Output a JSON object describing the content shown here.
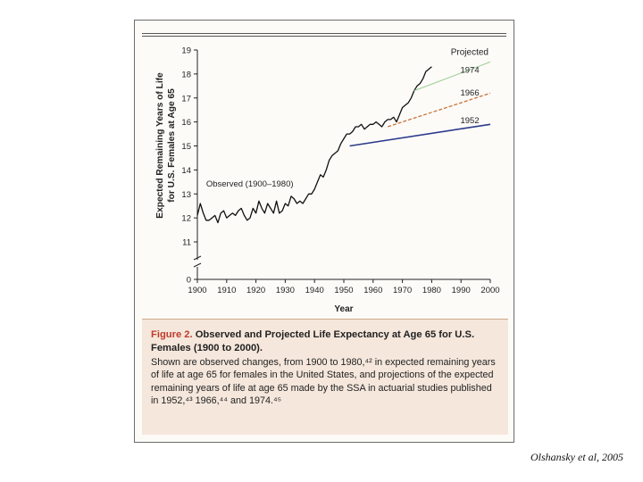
{
  "caption": {
    "label": "Figure 2.",
    "title": "Observed and Projected Life Expectancy at Age 65 for U.S. Females (1900 to 2000).",
    "body": "Shown are observed changes, from 1900 to 1980,⁴² in expected remaining years of life at age 65 for females in the United States, and projections of the expected remaining years of life at age 65 made by the SSA in actuarial studies published in 1952,⁴³ 1966,⁴⁴ and 1974.⁴⁵"
  },
  "credit": "Olshansky et al, 2005",
  "colors": {
    "observed": "#111111",
    "proj1974": "#9fcf9a",
    "proj1966": "#c8743a",
    "proj1952": "#2b3a8c",
    "caption_bg": "#f5e7dc"
  },
  "chart_data": {
    "type": "line",
    "title": "",
    "xlabel": "Year",
    "ylabel": "Expected Remaining Years of Life for U.S. Females at Age 65",
    "xlim": [
      1900,
      2000
    ],
    "ylim": [
      11,
      19
    ],
    "y_axis_break": "between 0 and 11",
    "x_ticks": [
      1900,
      1910,
      1920,
      1930,
      1940,
      1950,
      1960,
      1970,
      1980,
      1990,
      2000
    ],
    "x_tick_labels": [
      "1900",
      "1910",
      "1920",
      "1930",
      "1940",
      "1950",
      "1960",
      "1970",
      "1980",
      "1990",
      "2000"
    ],
    "y_ticks": [
      11,
      12,
      13,
      14,
      15,
      16,
      17,
      18,
      19
    ],
    "y_tick_labels": [
      "11",
      "12",
      "13",
      "14",
      "15",
      "16",
      "17",
      "18",
      "19"
    ],
    "y_zero_label": "0",
    "legend_header": "Projected",
    "grid": false,
    "series": [
      {
        "name": "Observed (1900–1980)",
        "x": [
          1900,
          1901,
          1902,
          1903,
          1904,
          1905,
          1906,
          1907,
          1908,
          1909,
          1910,
          1911,
          1912,
          1913,
          1914,
          1915,
          1916,
          1917,
          1918,
          1919,
          1920,
          1921,
          1922,
          1923,
          1924,
          1925,
          1926,
          1927,
          1928,
          1929,
          1930,
          1931,
          1932,
          1933,
          1934,
          1935,
          1936,
          1937,
          1938,
          1939,
          1940,
          1941,
          1942,
          1943,
          1944,
          1945,
          1946,
          1947,
          1948,
          1949,
          1950,
          1951,
          1952,
          1953,
          1954,
          1955,
          1956,
          1957,
          1958,
          1959,
          1960,
          1961,
          1962,
          1963,
          1964,
          1965,
          1966,
          1967,
          1968,
          1969,
          1970,
          1971,
          1972,
          1973,
          1974,
          1975,
          1976,
          1977,
          1978,
          1979,
          1980
        ],
        "y": [
          12.1,
          12.6,
          12.2,
          11.9,
          11.9,
          12.0,
          12.1,
          11.8,
          12.2,
          12.3,
          12.0,
          12.1,
          12.2,
          12.1,
          12.3,
          12.4,
          12.1,
          11.9,
          12.0,
          12.4,
          12.2,
          12.7,
          12.4,
          12.2,
          12.6,
          12.4,
          12.2,
          12.7,
          12.2,
          12.3,
          12.6,
          12.5,
          12.9,
          12.8,
          12.6,
          12.7,
          12.6,
          12.8,
          13.0,
          13.0,
          13.2,
          13.5,
          13.8,
          13.7,
          14.0,
          14.4,
          14.6,
          14.7,
          14.8,
          15.1,
          15.3,
          15.5,
          15.5,
          15.6,
          15.8,
          15.8,
          15.9,
          15.7,
          15.8,
          15.9,
          15.9,
          16.0,
          15.9,
          15.8,
          16.0,
          16.1,
          16.1,
          16.2,
          16.0,
          16.3,
          16.6,
          16.7,
          16.8,
          17.0,
          17.3,
          17.5,
          17.6,
          17.8,
          18.1,
          18.2,
          18.3
        ]
      },
      {
        "name": "1974",
        "x": [
          1974,
          2000
        ],
        "y": [
          17.3,
          18.5
        ]
      },
      {
        "name": "1966",
        "x": [
          1965,
          2000
        ],
        "y": [
          15.8,
          17.2
        ]
      },
      {
        "name": "1952",
        "x": [
          1952,
          2000
        ],
        "y": [
          15.0,
          15.9
        ]
      }
    ]
  }
}
